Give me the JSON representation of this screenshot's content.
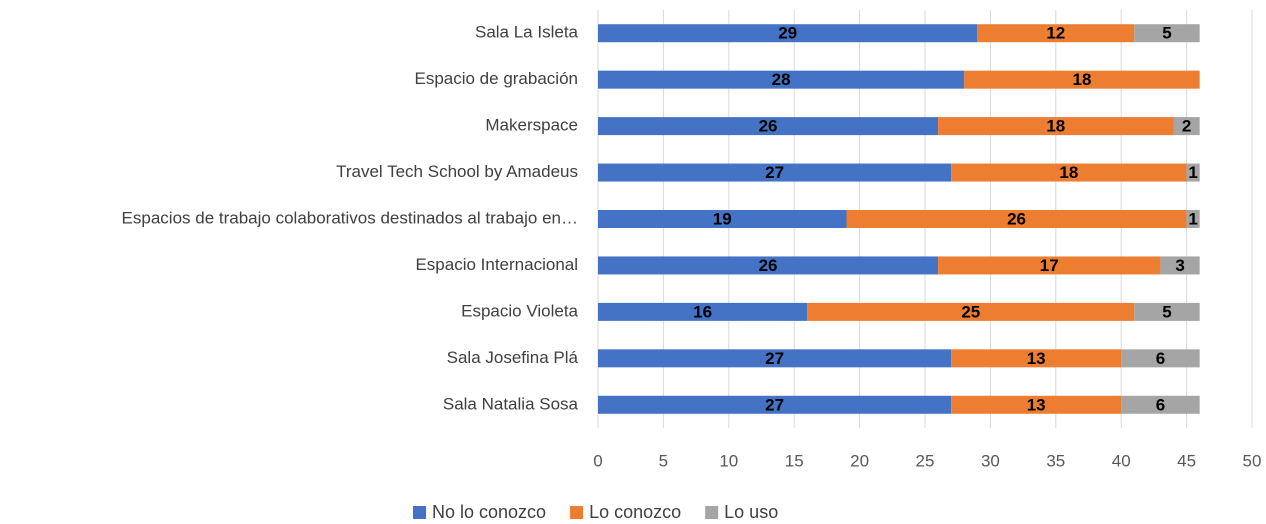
{
  "chart_data": {
    "type": "stacked_barh",
    "categories": [
      "Sala La Isleta",
      "Espacio de grabación",
      "Makerspace",
      "Travel Tech School by Amadeus",
      "Espacios de trabajo colaborativos destinados al trabajo en…",
      "Espacio Internacional",
      "Espacio Violeta",
      "Sala Josefina Plá",
      "Sala Natalia Sosa"
    ],
    "series": [
      {
        "name": "No lo conozco",
        "color": "#4472c4",
        "values": [
          29,
          28,
          26,
          27,
          19,
          26,
          16,
          27,
          27
        ]
      },
      {
        "name": "Lo conozco",
        "color": "#ed7d31",
        "values": [
          12,
          18,
          18,
          18,
          26,
          17,
          25,
          13,
          13
        ]
      },
      {
        "name": "Lo uso",
        "color": "#a5a5a5",
        "values": [
          5,
          null,
          2,
          1,
          1,
          3,
          5,
          6,
          6
        ]
      }
    ],
    "xlim": [
      0,
      50
    ],
    "xticks": [
      0,
      5,
      10,
      15,
      20,
      25,
      30,
      35,
      40,
      45,
      50
    ],
    "grid": true,
    "legend": "bottom"
  }
}
